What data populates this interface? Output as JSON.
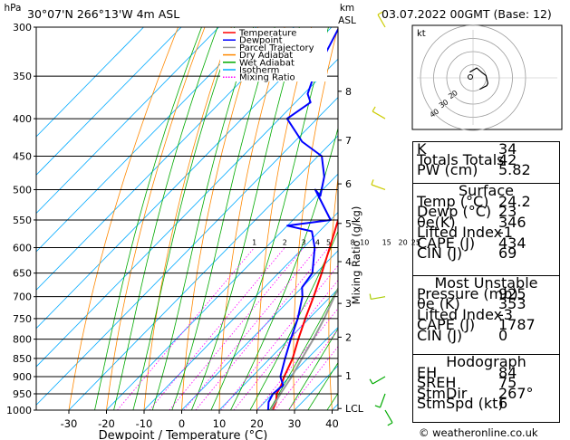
{
  "header": {
    "location": "30°07'N  266°13'W  4m  ASL",
    "datetime": "03.07.2022  00GMT  (Base: 12)",
    "hpa_unit": "hPa",
    "km_unit": "km",
    "asl_unit": "ASL"
  },
  "skewt": {
    "xlabel": "Dewpoint / Temperature (°C)",
    "ylabel_right": "Mixing Ratio (g/kg)",
    "pressure_levels": [
      300,
      350,
      400,
      450,
      500,
      550,
      600,
      650,
      700,
      750,
      800,
      850,
      900,
      950,
      1000
    ],
    "temp_ticks": [
      -30,
      -20,
      -10,
      0,
      10,
      20,
      30,
      40
    ],
    "km_ticks": [
      {
        "label": "8",
        "p": 367
      },
      {
        "label": "7",
        "p": 428
      },
      {
        "label": "6",
        "p": 491
      },
      {
        "label": "5",
        "p": 556
      },
      {
        "label": "4",
        "p": 627
      },
      {
        "label": "3",
        "p": 715
      },
      {
        "label": "2",
        "p": 795
      },
      {
        "label": "1",
        "p": 898
      },
      {
        "label": "LCL",
        "p": 995
      }
    ],
    "mixing_ratio_labels": [
      "1",
      "2",
      "3",
      "4",
      "5",
      "8",
      "10",
      "15",
      "20",
      "25"
    ],
    "legend": [
      {
        "name": "Temperature",
        "color": "#ff0000",
        "style": "solid"
      },
      {
        "name": "Dewpoint",
        "color": "#0000ff",
        "style": "solid"
      },
      {
        "name": "Parcel Trajectory",
        "color": "#999999",
        "style": "solid"
      },
      {
        "name": "Dry Adiabat",
        "color": "#ff8800",
        "style": "solid"
      },
      {
        "name": "Wet Adiabat",
        "color": "#00aa00",
        "style": "solid"
      },
      {
        "name": "Isotherm",
        "color": "#00aaff",
        "style": "solid"
      },
      {
        "name": "Mixing Ratio",
        "color": "#ff00ff",
        "style": "dotted"
      }
    ]
  },
  "chart_data": {
    "type": "line",
    "title": "",
    "xlabel": "Dewpoint / Temperature (°C)",
    "ylabel": "hPa",
    "xlim": [
      -35,
      40
    ],
    "ylim": [
      1000,
      300
    ],
    "series": [
      {
        "name": "Temperature",
        "color": "#ff0000",
        "points": [
          [
            1000,
            24.2
          ],
          [
            975,
            23
          ],
          [
            950,
            21
          ],
          [
            925,
            20
          ],
          [
            900,
            18.5
          ],
          [
            850,
            16
          ],
          [
            800,
            12.5
          ],
          [
            750,
            9
          ],
          [
            700,
            5.5
          ],
          [
            650,
            1.5
          ],
          [
            600,
            -3
          ],
          [
            550,
            -8
          ],
          [
            500,
            -13
          ],
          [
            450,
            -19
          ],
          [
            400,
            -26
          ],
          [
            350,
            -34
          ],
          [
            300,
            -43
          ]
        ]
      },
      {
        "name": "Dewpoint",
        "color": "#0000ff",
        "points": [
          [
            1000,
            23
          ],
          [
            975,
            21
          ],
          [
            950,
            20
          ],
          [
            925,
            20.5
          ],
          [
            900,
            17.5
          ],
          [
            850,
            14
          ],
          [
            800,
            10.5
          ],
          [
            750,
            7
          ],
          [
            700,
            2.5
          ],
          [
            680,
            0
          ],
          [
            650,
            -1
          ],
          [
            600,
            -7
          ],
          [
            570,
            -12
          ],
          [
            560,
            -20
          ],
          [
            550,
            -10
          ],
          [
            500,
            -22
          ],
          [
            510,
            -19
          ],
          [
            480,
            -23
          ],
          [
            450,
            -29
          ],
          [
            430,
            -38
          ],
          [
            400,
            -48
          ],
          [
            380,
            -46
          ],
          [
            370,
            -49
          ],
          [
            350,
            -52
          ],
          [
            300,
            -58
          ]
        ]
      },
      {
        "name": "Parcel Trajectory",
        "color": "#999999",
        "points": [
          [
            1000,
            24.2
          ],
          [
            995,
            23.5
          ],
          [
            950,
            22
          ],
          [
            900,
            20.5
          ],
          [
            850,
            18.5
          ],
          [
            800,
            16.5
          ],
          [
            750,
            14
          ],
          [
            700,
            11
          ],
          [
            650,
            8
          ],
          [
            600,
            4.5
          ],
          [
            550,
            0.5
          ],
          [
            500,
            -4
          ],
          [
            450,
            -9.5
          ],
          [
            400,
            -16
          ],
          [
            350,
            -24.5
          ]
        ]
      }
    ],
    "hodograph": {
      "rings_kt": [
        10,
        20,
        30,
        40
      ],
      "ring_labels": [
        "20",
        "30",
        "40"
      ]
    },
    "winds": [
      {
        "p": 1000,
        "dir": 150,
        "kt": 5
      },
      {
        "p": 950,
        "dir": 200,
        "kt": 8
      },
      {
        "p": 900,
        "dir": 240,
        "kt": 8
      },
      {
        "p": 700,
        "dir": 260,
        "kt": 10
      },
      {
        "p": 500,
        "dir": 290,
        "kt": 12
      },
      {
        "p": 400,
        "dir": 300,
        "kt": 12
      },
      {
        "p": 300,
        "dir": 330,
        "kt": 10
      }
    ]
  },
  "indices": {
    "top": [
      {
        "label": "K",
        "value": "34"
      },
      {
        "label": "Totals Totals",
        "value": "42"
      },
      {
        "label": "PW (cm)",
        "value": "5.82"
      }
    ],
    "surface_title": "Surface",
    "surface": [
      {
        "label": "Temp (°C)",
        "value": "24.2"
      },
      {
        "label": "Dewp (°C)",
        "value": "23"
      },
      {
        "label": "θe(K)",
        "value": "346"
      },
      {
        "label": "Lifted Index",
        "value": "-1"
      },
      {
        "label": "CAPE (J)",
        "value": "434"
      },
      {
        "label": "CIN (J)",
        "value": "69"
      }
    ],
    "mu_title": "Most Unstable",
    "mu": [
      {
        "label": "Pressure (mb)",
        "value": "925"
      },
      {
        "label": "θe (K)",
        "value": "353"
      },
      {
        "label": "Lifted Index",
        "value": "-3"
      },
      {
        "label": "CAPE (J)",
        "value": "1787"
      },
      {
        "label": "CIN (J)",
        "value": "0"
      }
    ],
    "hodo_title": "Hodograph",
    "hodo": [
      {
        "label": "EH",
        "value": "84"
      },
      {
        "label": "SREH",
        "value": "75"
      },
      {
        "label": "StmDir",
        "value": "267°"
      },
      {
        "label": "StmSpd (kt)",
        "value": "6"
      }
    ]
  },
  "footer": {
    "copyright": "© weatheronline.co.uk"
  },
  "hodo_unit": "kt"
}
